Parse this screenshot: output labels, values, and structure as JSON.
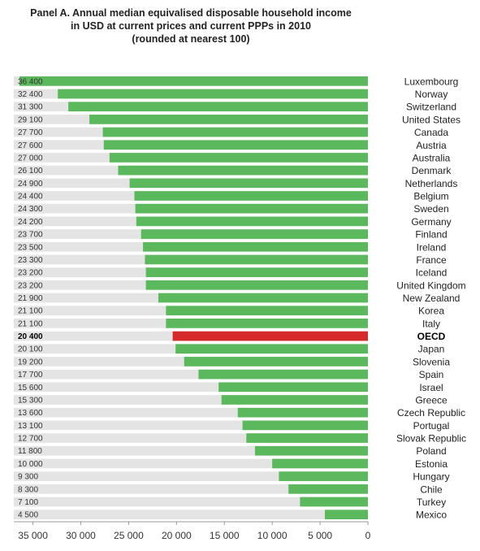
{
  "title": {
    "line1": "Panel A. Annual median equivalised disposable household income",
    "line2": "in USD at current prices and current PPPs in 2010",
    "line3": "(rounded at nearest 100)"
  },
  "colors": {
    "bar": "#5cb85c",
    "highlight": "#d42a2a",
    "track": "#e4e4e4"
  },
  "chart_data": {
    "type": "bar",
    "orientation": "horizontal",
    "title": "Panel A. Annual median equivalised disposable household income in USD at current prices and current PPPs in 2010 (rounded at nearest 100)",
    "categories": [
      "Luxembourg",
      "Norway",
      "Switzerland",
      "United States",
      "Canada",
      "Austria",
      "Australia",
      "Denmark",
      "Netherlands",
      "Belgium",
      "Sweden",
      "Germany",
      "Finland",
      "Ireland",
      "France",
      "Iceland",
      "United Kingdom",
      "New Zealand",
      "Korea",
      "Italy",
      "OECD",
      "Japan",
      "Slovenia",
      "Spain",
      "Israel",
      "Greece",
      "Czech Republic",
      "Portugal",
      "Slovak Republic",
      "Poland",
      "Estonia",
      "Hungary",
      "Chile",
      "Turkey",
      "Mexico"
    ],
    "values": [
      36400,
      32400,
      31300,
      29100,
      27700,
      27600,
      27000,
      26100,
      24900,
      24400,
      24300,
      24200,
      23700,
      23500,
      23300,
      23200,
      23200,
      21900,
      21100,
      21100,
      20400,
      20100,
      19200,
      17700,
      15600,
      15300,
      13600,
      13100,
      12700,
      11800,
      10000,
      9300,
      8300,
      7100,
      4500
    ],
    "value_labels": [
      "36 400",
      "32 400",
      "31 300",
      "29 100",
      "27 700",
      "27 600",
      "27 000",
      "26 100",
      "24 900",
      "24 400",
      "24 300",
      "24 200",
      "23 700",
      "23 500",
      "23 300",
      "23 200",
      "23 200",
      "21 900",
      "21 100",
      "21 100",
      "20 400",
      "20 100",
      "19 200",
      "17 700",
      "15 600",
      "15 300",
      "13 600",
      "13 100",
      "12 700",
      "11 800",
      "10 000",
      "9 300",
      "8 300",
      "7 100",
      "4 500"
    ],
    "highlight": "OECD",
    "xlim": [
      37000,
      0
    ],
    "xticks": [
      35000,
      30000,
      25000,
      20000,
      15000,
      10000,
      5000,
      0
    ],
    "xtick_labels": [
      "35 000",
      "30 000",
      "25 000",
      "20 000",
      "15 000",
      "10 000",
      "5 000",
      "0"
    ],
    "axis_reversed": true,
    "legend": "none"
  }
}
